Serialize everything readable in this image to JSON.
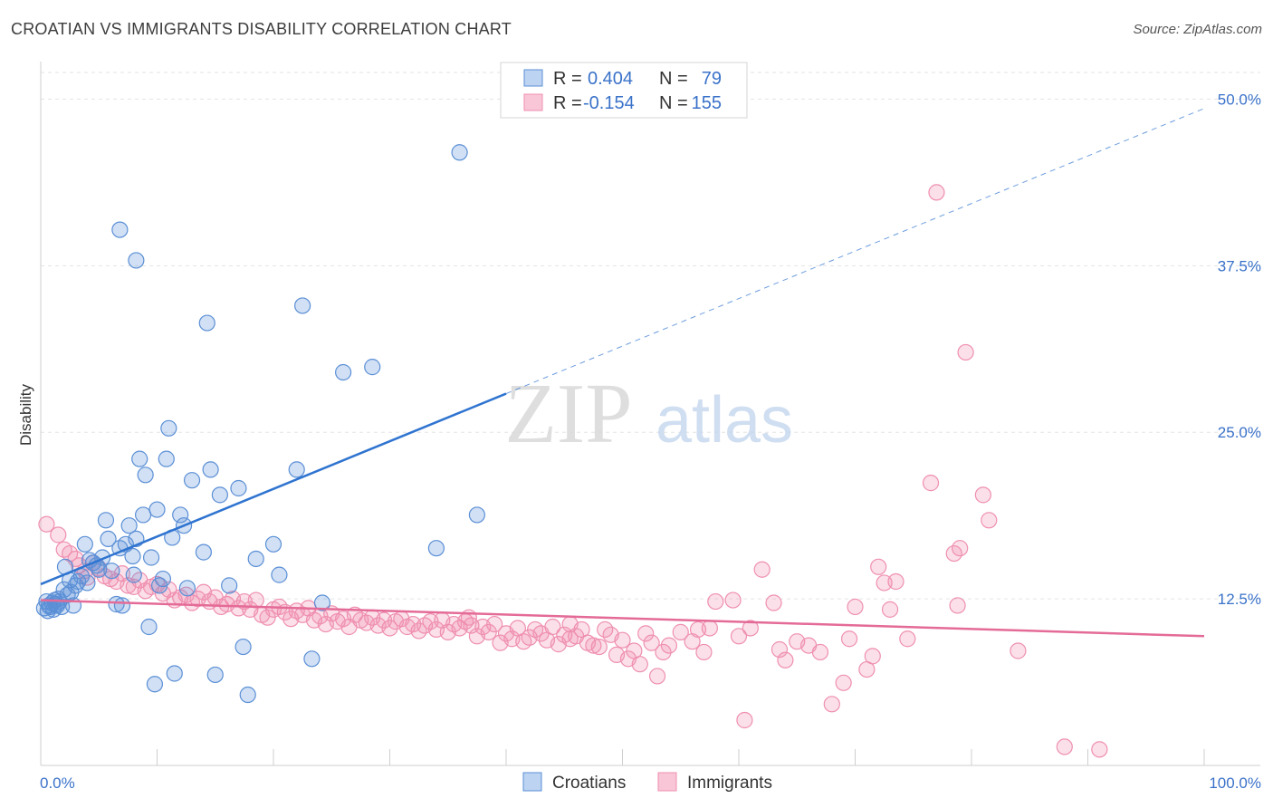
{
  "title": "CROATIAN VS IMMIGRANTS DISABILITY CORRELATION CHART",
  "source": "Source: ZipAtlas.com",
  "watermark": {
    "zip": "ZIP",
    "atlas": "atlas"
  },
  "colors": {
    "croatians": "#5b8fd6",
    "croatians_line": "#2f74d0",
    "immigrants": "#ef8fb0",
    "immigrants_line": "#e46b97",
    "tick": "#3a72c9"
  },
  "legend": {
    "rows": [
      {
        "r_label": "R =",
        "r_value": "0.404",
        "n_label": "N =",
        "n_value": "79"
      },
      {
        "r_label": "R =",
        "r_value": "-0.154",
        "n_label": "N =",
        "n_value": "155"
      }
    ]
  },
  "chart_data": {
    "type": "scatter",
    "title": "CROATIAN VS IMMIGRANTS DISABILITY CORRELATION CHART",
    "xlabel": "",
    "ylabel": "Disability",
    "xlim": [
      0,
      100
    ],
    "ylim": [
      0,
      52
    ],
    "x_tick_labels": [
      "0.0%",
      "100.0%"
    ],
    "y_ticks": [
      12.5,
      25.0,
      37.5,
      50.0
    ],
    "y_tick_labels": [
      "12.5%",
      "25.0%",
      "37.5%",
      "50.0%"
    ],
    "grid": true,
    "legend_position": "top-center",
    "series": [
      {
        "name": "Croatians",
        "r": 0.404,
        "n": 79,
        "trend": {
          "x": [
            0,
            40,
            100
          ],
          "y": [
            13.6,
            27.9,
            49.3
          ],
          "solid_until": 40
        },
        "points": [
          [
            0.3,
            11.8
          ],
          [
            0.5,
            12.3
          ],
          [
            0.6,
            11.6
          ],
          [
            0.7,
            12.0
          ],
          [
            0.8,
            11.9
          ],
          [
            1.0,
            12.2
          ],
          [
            1.1,
            11.7
          ],
          [
            1.2,
            12.4
          ],
          [
            1.3,
            12.1
          ],
          [
            1.4,
            12.0
          ],
          [
            1.5,
            12.5
          ],
          [
            1.6,
            12.3
          ],
          [
            1.8,
            11.9
          ],
          [
            2.0,
            13.2
          ],
          [
            2.1,
            14.9
          ],
          [
            2.3,
            12.8
          ],
          [
            2.5,
            13.9
          ],
          [
            2.6,
            13.0
          ],
          [
            2.8,
            12.0
          ],
          [
            3.0,
            13.5
          ],
          [
            3.2,
            13.8
          ],
          [
            3.5,
            14.2
          ],
          [
            3.8,
            16.6
          ],
          [
            4.0,
            13.7
          ],
          [
            4.2,
            15.4
          ],
          [
            4.5,
            15.2
          ],
          [
            4.8,
            15.0
          ],
          [
            5.0,
            14.7
          ],
          [
            5.3,
            15.6
          ],
          [
            5.6,
            18.4
          ],
          [
            5.8,
            17.0
          ],
          [
            6.1,
            14.6
          ],
          [
            6.5,
            12.1
          ],
          [
            6.8,
            16.3
          ],
          [
            7.0,
            12.0
          ],
          [
            7.3,
            16.6
          ],
          [
            7.6,
            18.0
          ],
          [
            7.9,
            15.7
          ],
          [
            8.0,
            14.3
          ],
          [
            8.2,
            17.0
          ],
          [
            8.5,
            23.0
          ],
          [
            8.8,
            18.8
          ],
          [
            9.0,
            21.8
          ],
          [
            9.3,
            10.4
          ],
          [
            9.5,
            15.6
          ],
          [
            9.8,
            6.1
          ],
          [
            10.0,
            19.2
          ],
          [
            10.2,
            13.5
          ],
          [
            10.5,
            14.0
          ],
          [
            10.8,
            23.0
          ],
          [
            11.0,
            25.3
          ],
          [
            11.3,
            17.1
          ],
          [
            11.5,
            6.9
          ],
          [
            12.0,
            18.8
          ],
          [
            12.3,
            18.0
          ],
          [
            12.6,
            13.3
          ],
          [
            13.0,
            21.4
          ],
          [
            14.0,
            16.0
          ],
          [
            14.3,
            33.2
          ],
          [
            14.6,
            22.2
          ],
          [
            15.0,
            6.8
          ],
          [
            15.4,
            20.3
          ],
          [
            16.2,
            13.5
          ],
          [
            17.0,
            20.8
          ],
          [
            17.4,
            8.9
          ],
          [
            17.8,
            5.3
          ],
          [
            18.5,
            15.5
          ],
          [
            20.0,
            16.6
          ],
          [
            20.5,
            14.3
          ],
          [
            22.5,
            34.5
          ],
          [
            22.0,
            22.2
          ],
          [
            23.3,
            8.0
          ],
          [
            24.2,
            12.2
          ],
          [
            26.0,
            29.5
          ],
          [
            28.5,
            29.9
          ],
          [
            34.0,
            16.3
          ],
          [
            36.0,
            46.0
          ],
          [
            37.5,
            18.8
          ],
          [
            6.8,
            40.2
          ],
          [
            8.2,
            37.9
          ]
        ]
      },
      {
        "name": "Immigrants",
        "r": -0.154,
        "n": 155,
        "trend": {
          "x": [
            0,
            100
          ],
          "y": [
            12.4,
            9.7
          ]
        },
        "points": [
          [
            0.5,
            18.1
          ],
          [
            1.5,
            17.3
          ],
          [
            2.0,
            16.2
          ],
          [
            2.5,
            15.9
          ],
          [
            3.0,
            15.5
          ],
          [
            3.3,
            15.0
          ],
          [
            3.8,
            14.6
          ],
          [
            4.0,
            14.1
          ],
          [
            4.5,
            15.2
          ],
          [
            5.0,
            14.8
          ],
          [
            5.5,
            14.2
          ],
          [
            6.0,
            14.0
          ],
          [
            6.5,
            13.8
          ],
          [
            7.0,
            14.4
          ],
          [
            7.5,
            13.5
          ],
          [
            8.0,
            13.4
          ],
          [
            8.5,
            13.9
          ],
          [
            9.0,
            13.1
          ],
          [
            9.5,
            13.4
          ],
          [
            10.0,
            13.6
          ],
          [
            10.5,
            12.9
          ],
          [
            11.0,
            13.2
          ],
          [
            11.5,
            12.4
          ],
          [
            12.0,
            12.6
          ],
          [
            12.5,
            12.8
          ],
          [
            13.0,
            12.2
          ],
          [
            13.5,
            12.5
          ],
          [
            14.0,
            13.0
          ],
          [
            14.5,
            12.3
          ],
          [
            15.0,
            12.6
          ],
          [
            15.5,
            11.9
          ],
          [
            16.0,
            12.1
          ],
          [
            16.5,
            12.5
          ],
          [
            17.0,
            11.8
          ],
          [
            17.5,
            12.3
          ],
          [
            18.0,
            11.7
          ],
          [
            18.5,
            12.4
          ],
          [
            19.0,
            11.3
          ],
          [
            19.5,
            11.1
          ],
          [
            20.0,
            11.7
          ],
          [
            20.5,
            11.9
          ],
          [
            21.0,
            11.5
          ],
          [
            21.5,
            11.0
          ],
          [
            22.0,
            11.6
          ],
          [
            22.5,
            11.3
          ],
          [
            23.0,
            11.8
          ],
          [
            23.5,
            10.9
          ],
          [
            24.0,
            11.2
          ],
          [
            24.5,
            10.6
          ],
          [
            25.0,
            11.4
          ],
          [
            25.5,
            10.8
          ],
          [
            26.0,
            11.0
          ],
          [
            26.5,
            10.4
          ],
          [
            27.0,
            11.3
          ],
          [
            27.5,
            10.9
          ],
          [
            28.0,
            10.7
          ],
          [
            28.5,
            11.1
          ],
          [
            29.0,
            10.5
          ],
          [
            29.5,
            10.9
          ],
          [
            30.0,
            10.3
          ],
          [
            30.5,
            10.8
          ],
          [
            31.0,
            11.0
          ],
          [
            31.5,
            10.4
          ],
          [
            32.0,
            10.6
          ],
          [
            32.5,
            10.1
          ],
          [
            33.0,
            10.5
          ],
          [
            33.5,
            10.8
          ],
          [
            34.0,
            10.2
          ],
          [
            34.5,
            10.9
          ],
          [
            35.0,
            10.0
          ],
          [
            35.5,
            10.6
          ],
          [
            36.0,
            10.3
          ],
          [
            36.5,
            10.8
          ],
          [
            37.0,
            10.5
          ],
          [
            37.5,
            9.7
          ],
          [
            38.0,
            10.4
          ],
          [
            38.5,
            10.0
          ],
          [
            39.0,
            10.6
          ],
          [
            39.5,
            9.2
          ],
          [
            40.0,
            9.9
          ],
          [
            40.5,
            9.5
          ],
          [
            41.0,
            10.3
          ],
          [
            41.5,
            9.3
          ],
          [
            42.0,
            9.6
          ],
          [
            42.5,
            10.2
          ],
          [
            43.0,
            9.9
          ],
          [
            43.5,
            9.4
          ],
          [
            44.0,
            10.4
          ],
          [
            44.5,
            9.1
          ],
          [
            45.0,
            9.8
          ],
          [
            45.5,
            10.6
          ],
          [
            46.0,
            9.7
          ],
          [
            46.5,
            10.2
          ],
          [
            47.0,
            9.2
          ],
          [
            47.5,
            9.0
          ],
          [
            48.0,
            8.9
          ],
          [
            48.5,
            10.2
          ],
          [
            49.0,
            9.8
          ],
          [
            49.5,
            8.3
          ],
          [
            50.0,
            9.4
          ],
          [
            50.5,
            8.0
          ],
          [
            51.0,
            8.6
          ],
          [
            51.5,
            7.6
          ],
          [
            52.0,
            9.9
          ],
          [
            52.5,
            9.2
          ],
          [
            53.0,
            6.7
          ],
          [
            53.5,
            8.5
          ],
          [
            54.0,
            9.0
          ],
          [
            55.0,
            10.0
          ],
          [
            56.0,
            9.3
          ],
          [
            57.0,
            8.5
          ],
          [
            57.5,
            10.3
          ],
          [
            58.0,
            12.3
          ],
          [
            59.5,
            12.4
          ],
          [
            60.0,
            9.7
          ],
          [
            61.0,
            10.3
          ],
          [
            62.0,
            14.7
          ],
          [
            63.0,
            12.2
          ],
          [
            63.5,
            8.7
          ],
          [
            64.0,
            7.9
          ],
          [
            65.0,
            9.3
          ],
          [
            66.0,
            9.0
          ],
          [
            67.0,
            8.5
          ],
          [
            68.0,
            4.6
          ],
          [
            69.0,
            6.2
          ],
          [
            69.5,
            9.5
          ],
          [
            70.0,
            11.9
          ],
          [
            71.0,
            7.2
          ],
          [
            71.5,
            8.2
          ],
          [
            72.0,
            14.9
          ],
          [
            72.5,
            13.7
          ],
          [
            73.0,
            11.7
          ],
          [
            73.5,
            13.8
          ],
          [
            74.5,
            9.5
          ],
          [
            76.5,
            21.2
          ],
          [
            77.0,
            43.0
          ],
          [
            78.5,
            15.9
          ],
          [
            78.8,
            12.0
          ],
          [
            79.0,
            16.3
          ],
          [
            79.5,
            31.0
          ],
          [
            81.0,
            20.3
          ],
          [
            81.5,
            18.4
          ],
          [
            84.0,
            8.6
          ],
          [
            88.0,
            1.4
          ],
          [
            91.0,
            1.2
          ],
          [
            60.5,
            3.4
          ],
          [
            56.5,
            10.2
          ],
          [
            36.8,
            11.1
          ],
          [
            45.5,
            9.5
          ]
        ]
      }
    ]
  },
  "bottom_legend": [
    "Croatians",
    "Immigrants"
  ]
}
